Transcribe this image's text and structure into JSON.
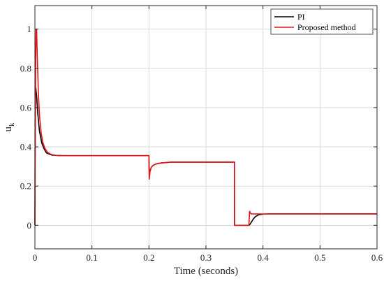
{
  "chart_data": {
    "type": "line",
    "xlabel": "Time (seconds)",
    "ylabel": "u",
    "ylabel_sub": "k",
    "xlim": [
      0,
      0.6
    ],
    "ylim": [
      -0.12,
      1.12
    ],
    "xticks": [
      0,
      0.1,
      0.2,
      0.3,
      0.4,
      0.5,
      0.6
    ],
    "xtick_labels": [
      "0",
      "0.1",
      "0.2",
      "0.3",
      "0.4",
      "0.5",
      "0.6"
    ],
    "yticks": [
      0,
      0.2,
      0.4,
      0.6,
      0.8,
      1
    ],
    "ytick_labels": [
      "0",
      "0.2",
      "0.4",
      "0.6",
      "0.8",
      "1"
    ],
    "grid": true,
    "legend_position": "top-right",
    "series": [
      {
        "name": "PI",
        "color": "#000000",
        "x": [
          0,
          0.0005,
          0.0015,
          0.003,
          0.005,
          0.008,
          0.012,
          0.016,
          0.02,
          0.025,
          0.03,
          0.04,
          0.05,
          0.07,
          0.1,
          0.2,
          0.2003,
          0.2006,
          0.201,
          0.202,
          0.204,
          0.207,
          0.211,
          0.216,
          0.222,
          0.23,
          0.24,
          0.26,
          0.3,
          0.35,
          0.3501,
          0.36,
          0.375,
          0.3752,
          0.377,
          0.38,
          0.383,
          0.387,
          0.392,
          0.4,
          0.41,
          0.43,
          0.46,
          0.5,
          0.55,
          0.6
        ],
        "y": [
          0,
          0.68,
          0.7,
          0.66,
          0.57,
          0.48,
          0.42,
          0.39,
          0.37,
          0.363,
          0.358,
          0.356,
          0.355,
          0.355,
          0.355,
          0.355,
          0.29,
          0.25,
          0.26,
          0.28,
          0.295,
          0.305,
          0.311,
          0.315,
          0.318,
          0.32,
          0.322,
          0.322,
          0.322,
          0.322,
          0.0,
          0.0,
          0.0,
          0.0,
          0.004,
          0.018,
          0.032,
          0.045,
          0.053,
          0.057,
          0.058,
          0.058,
          0.058,
          0.058,
          0.058,
          0.058
        ]
      },
      {
        "name": "Proposed method",
        "color": "#e8141c",
        "x": [
          0,
          0.0005,
          0.0012,
          0.002,
          0.003,
          0.004,
          0.006,
          0.008,
          0.011,
          0.014,
          0.018,
          0.022,
          0.028,
          0.035,
          0.045,
          0.06,
          0.1,
          0.2,
          0.2002,
          0.2005,
          0.201,
          0.202,
          0.204,
          0.207,
          0.211,
          0.216,
          0.222,
          0.23,
          0.24,
          0.26,
          0.3,
          0.35,
          0.3501,
          0.36,
          0.375,
          0.3752,
          0.376,
          0.3765,
          0.378,
          0.38,
          0.385,
          0.39,
          0.4,
          0.45,
          0.5,
          0.6
        ],
        "y": [
          0,
          0.3,
          0.8,
          1.0,
          1.0,
          0.88,
          0.68,
          0.56,
          0.47,
          0.42,
          0.39,
          0.372,
          0.362,
          0.357,
          0.355,
          0.355,
          0.355,
          0.355,
          0.3,
          0.235,
          0.25,
          0.275,
          0.295,
          0.305,
          0.311,
          0.315,
          0.318,
          0.32,
          0.322,
          0.322,
          0.322,
          0.322,
          0.0,
          0.0,
          0.0,
          0.0,
          0.04,
          0.072,
          0.062,
          0.058,
          0.058,
          0.058,
          0.058,
          0.058,
          0.058,
          0.058
        ]
      }
    ]
  }
}
